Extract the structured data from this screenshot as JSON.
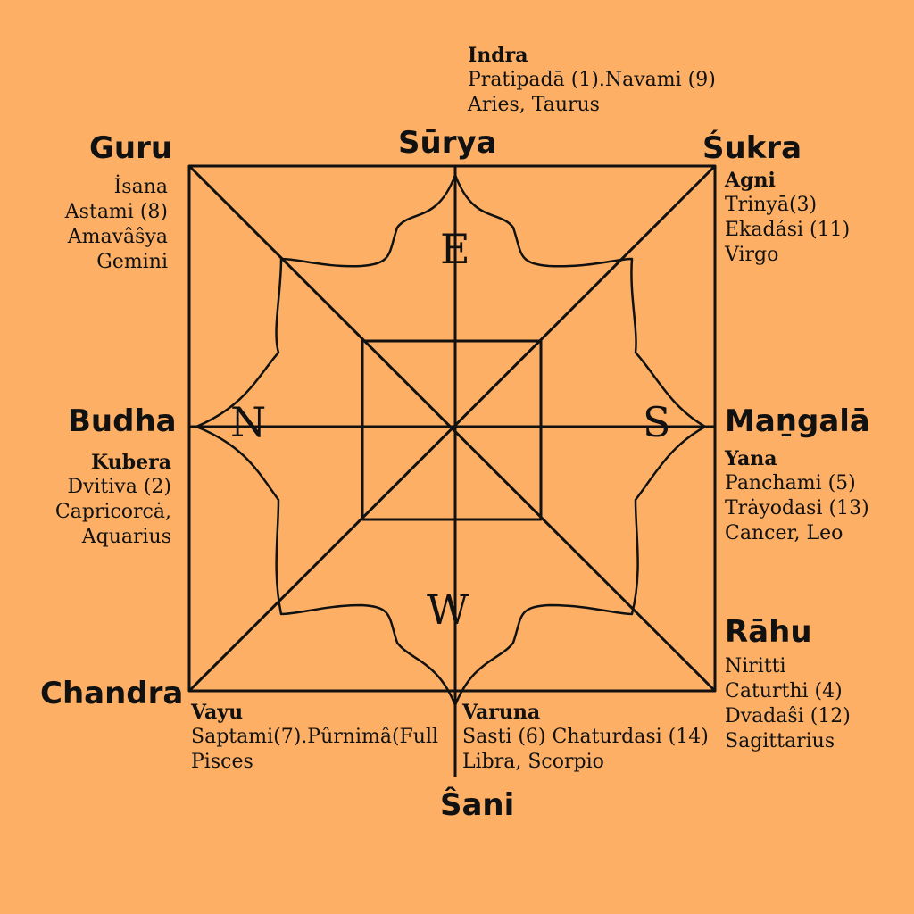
{
  "compass": {
    "east": "E",
    "north": "N",
    "south": "S",
    "west": "W"
  },
  "planets": {
    "surya": "Sūrya",
    "guru": "Guru",
    "sukra": "Śukra",
    "budha": "Budha",
    "mangala": "Maṉgalā",
    "rahu": "Rāhu",
    "chandra": "Chandra",
    "sani": "Ŝani"
  },
  "east": {
    "deity": "Indra",
    "lines": [
      "Pratipadā (1).Navami (9)",
      "Aries, Taurus"
    ]
  },
  "northeast": {
    "lines": [
      "İsana",
      "Astami (8)",
      "Amavâŝya",
      "Gemini"
    ]
  },
  "southeast": {
    "deity": "Agni",
    "lines": [
      "Trinyā(3)",
      "Ekadási (11)",
      "Virgo"
    ]
  },
  "north": {
    "deity": "Kubera",
    "lines": [
      "Dvitiva (2)",
      "Capricorcȧ,",
      "Aquarius"
    ]
  },
  "south": {
    "deity": "Yana",
    "lines": [
      "Panchami (5)",
      "Trȧyodasi (13)",
      "Cancer, Leo"
    ]
  },
  "southwest": {
    "lines": [
      "Niritti",
      "Caturthi (4)",
      "Dvadaŝi (12)",
      "Sagittarius"
    ]
  },
  "northwest": {
    "deity": "Vayu",
    "lines": [
      "Saptami(7).Pûrnimâ(Full",
      "Pisces"
    ]
  },
  "west": {
    "deity": "Varuna",
    "lines": [
      "Sasti (6) Chaturdasi (14)",
      "Libra, Scorpio"
    ]
  }
}
